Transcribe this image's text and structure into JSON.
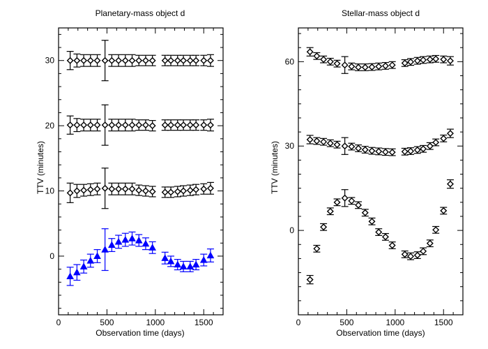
{
  "chart_data": [
    {
      "type": "scatter",
      "title": "Planetary-mass object d",
      "xlabel": "Observation time (days)",
      "ylabel": "TTV (minutes)",
      "xlim": [
        0,
        1700
      ],
      "ylim": [
        -9,
        35
      ],
      "xticks": [
        0,
        500,
        1000,
        1500
      ],
      "yticks": [
        0,
        10,
        20,
        30
      ],
      "grid": false,
      "series": [
        {
          "marker": "triangle",
          "color": "#0000ff",
          "x": [
            120,
            190,
            260,
            330,
            400,
            480,
            550,
            620,
            690,
            760,
            830,
            900,
            970,
            1100,
            1160,
            1230,
            1290,
            1360,
            1420,
            1500,
            1570
          ],
          "y": [
            -3.1,
            -2.5,
            -1.6,
            -0.7,
            0.0,
            1.0,
            1.7,
            2.2,
            2.5,
            2.7,
            2.4,
            1.9,
            1.3,
            -0.3,
            -0.8,
            -1.3,
            -1.6,
            -1.6,
            -1.3,
            -0.6,
            0.1
          ],
          "err": [
            1.4,
            1.2,
            1.0,
            1.0,
            1.0,
            3.2,
            1.0,
            1.0,
            1.0,
            1.0,
            0.9,
            0.9,
            0.9,
            0.9,
            0.8,
            0.8,
            0.8,
            0.8,
            0.8,
            0.9,
            1.0
          ]
        },
        {
          "marker": "diamond",
          "color": "#000000",
          "x": [
            120,
            190,
            260,
            330,
            400,
            480,
            550,
            620,
            690,
            760,
            830,
            900,
            970,
            1100,
            1160,
            1230,
            1290,
            1360,
            1420,
            1500,
            1570
          ],
          "y": [
            9.7,
            10.0,
            10.1,
            10.2,
            10.3,
            10.4,
            10.3,
            10.3,
            10.3,
            10.3,
            10.1,
            10.0,
            9.9,
            9.8,
            9.8,
            9.9,
            10.0,
            10.1,
            10.2,
            10.3,
            10.4
          ],
          "err": [
            1.5,
            1.0,
            0.9,
            0.9,
            0.9,
            3.1,
            0.9,
            0.9,
            0.9,
            0.9,
            0.8,
            0.8,
            0.8,
            0.8,
            0.8,
            0.8,
            0.8,
            0.8,
            0.8,
            0.8,
            0.9
          ]
        },
        {
          "marker": "diamond",
          "color": "#000000",
          "x": [
            120,
            190,
            260,
            330,
            400,
            480,
            550,
            620,
            690,
            760,
            830,
            900,
            970,
            1100,
            1160,
            1230,
            1290,
            1360,
            1420,
            1500,
            1570
          ],
          "y": [
            20.1,
            20.1,
            20.1,
            20.1,
            20.1,
            20.1,
            20.1,
            20.1,
            20.1,
            20.1,
            20.1,
            20.1,
            20.0,
            20.1,
            20.1,
            20.1,
            20.1,
            20.1,
            20.1,
            20.1,
            20.1
          ],
          "err": [
            1.4,
            1.0,
            0.9,
            0.9,
            0.9,
            3.1,
            0.9,
            0.9,
            0.9,
            0.9,
            0.8,
            0.8,
            0.8,
            0.8,
            0.8,
            0.8,
            0.8,
            0.8,
            0.8,
            0.8,
            0.9
          ]
        },
        {
          "marker": "diamond",
          "color": "#000000",
          "x": [
            120,
            190,
            260,
            330,
            400,
            480,
            550,
            620,
            690,
            760,
            830,
            900,
            970,
            1100,
            1160,
            1230,
            1290,
            1360,
            1420,
            1500,
            1570
          ],
          "y": [
            30.0,
            30.0,
            30.0,
            30.0,
            30.0,
            30.0,
            30.0,
            30.0,
            30.0,
            30.0,
            30.0,
            30.0,
            30.0,
            30.0,
            30.0,
            30.0,
            30.0,
            30.0,
            30.0,
            30.0,
            30.0
          ],
          "err": [
            1.4,
            1.0,
            0.9,
            0.9,
            0.9,
            3.1,
            0.9,
            0.9,
            0.9,
            0.9,
            0.8,
            0.8,
            0.8,
            0.8,
            0.8,
            0.8,
            0.8,
            0.8,
            0.8,
            0.8,
            0.9
          ]
        }
      ]
    },
    {
      "type": "scatter",
      "title": "Stellar-mass object d",
      "xlabel": "Observation time (days)",
      "ylabel": "TTV (minutes)",
      "xlim": [
        0,
        1700
      ],
      "ylim": [
        -30,
        72
      ],
      "xticks": [
        0,
        500,
        1000,
        1500
      ],
      "yticks": [
        0,
        30,
        60
      ],
      "grid": false,
      "series": [
        {
          "marker": "diamond",
          "color": "#000000",
          "x": [
            120,
            190,
            260,
            330,
            400,
            480,
            550,
            620,
            690,
            760,
            830,
            900,
            970,
            1100,
            1160,
            1230,
            1290,
            1360,
            1420,
            1500,
            1570
          ],
          "y": [
            -17.5,
            -6.5,
            1.2,
            6.8,
            10.0,
            11.5,
            10.5,
            9.0,
            6.3,
            3.2,
            -0.6,
            -2.3,
            -5.3,
            -8.5,
            -9.2,
            -8.8,
            -7.4,
            -4.6,
            0.2,
            7.0,
            16.5
          ],
          "err": [
            1.5,
            1.2,
            1.2,
            1.2,
            1.2,
            3.0,
            1.2,
            1.2,
            1.2,
            1.2,
            1.2,
            1.2,
            1.2,
            1.2,
            1.2,
            1.2,
            1.2,
            1.2,
            1.2,
            1.2,
            1.5
          ]
        },
        {
          "marker": "diamond",
          "color": "#000000",
          "x": [
            120,
            190,
            260,
            330,
            400,
            480,
            550,
            620,
            690,
            760,
            830,
            900,
            970,
            1100,
            1160,
            1230,
            1290,
            1360,
            1420,
            1500,
            1570
          ],
          "y": [
            32.3,
            31.8,
            31.5,
            31.0,
            30.5,
            30.0,
            29.8,
            29.2,
            28.7,
            28.3,
            28.1,
            27.9,
            27.8,
            28.0,
            28.2,
            28.6,
            29.0,
            30.0,
            31.3,
            32.7,
            34.5
          ],
          "err": [
            1.5,
            1.2,
            1.2,
            1.2,
            1.2,
            3.0,
            1.2,
            1.2,
            1.2,
            1.2,
            1.2,
            1.2,
            1.2,
            1.2,
            1.2,
            1.2,
            1.2,
            1.2,
            1.2,
            1.2,
            1.5
          ]
        },
        {
          "marker": "diamond",
          "color": "#000000",
          "x": [
            120,
            190,
            260,
            330,
            400,
            480,
            550,
            620,
            690,
            760,
            830,
            900,
            970,
            1100,
            1160,
            1230,
            1290,
            1360,
            1420,
            1500,
            1570
          ],
          "y": [
            63.5,
            62.0,
            60.8,
            60.0,
            59.3,
            58.8,
            58.3,
            58.0,
            58.0,
            58.1,
            58.3,
            58.5,
            58.8,
            59.5,
            59.9,
            60.3,
            60.6,
            60.8,
            61.0,
            60.8,
            60.3
          ],
          "err": [
            1.5,
            1.2,
            1.2,
            1.2,
            1.2,
            3.0,
            1.2,
            1.2,
            1.2,
            1.2,
            1.2,
            1.2,
            1.2,
            1.2,
            1.2,
            1.2,
            1.2,
            1.2,
            1.2,
            1.2,
            1.5
          ]
        }
      ]
    }
  ]
}
